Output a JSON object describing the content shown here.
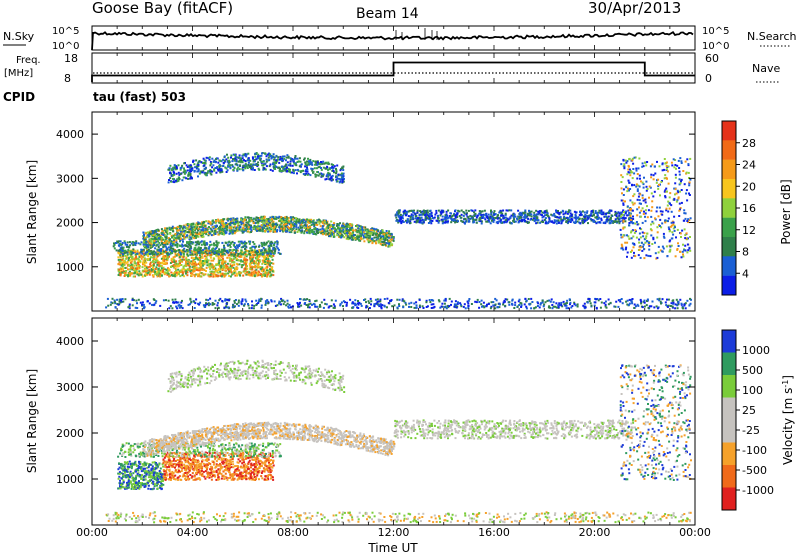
{
  "header": {
    "title": "Goose Bay (fitACF)",
    "beam": "Beam 14",
    "date": "30/Apr/2013"
  },
  "nsky_panel": {
    "label": "N.Sky",
    "right_label": "N.Search",
    "ticks_left": [
      "10^5",
      "10^0"
    ],
    "ticks_right": [
      "10^5",
      "10^0"
    ]
  },
  "freq_panel": {
    "label_line1": "Freq.",
    "label_line2": "[MHz]",
    "ticks_left": [
      "18",
      "8"
    ],
    "ticks_right": [
      "60",
      "0"
    ],
    "right_label": "Nave",
    "cpid_label": "CPID",
    "cpid_value": "tau (fast) 503"
  },
  "colors": {
    "power": [
      "#0b1ee6",
      "#1a5fd4",
      "#2f7f4a",
      "#3aa14a",
      "#8fd13c",
      "#f7c51e",
      "#f59a19",
      "#f16a17",
      "#e5321a"
    ],
    "velocity_pos": [
      "#1c3bd8",
      "#2f9b5f",
      "#7acc3a"
    ],
    "velocity_gray": "#c6c3bf",
    "velocity_neg": [
      "#f5a12a",
      "#f06a1a",
      "#e0201f"
    ]
  },
  "chart_data": [
    {
      "type": "heatmap",
      "name_key": "power",
      "ylabel": "Slant Range [km]",
      "yticks": [
        "1000",
        "2000",
        "3000",
        "4000"
      ],
      "ylim": [
        0,
        4500
      ],
      "colorbar_label": "Power [dB]",
      "colorbar_ticks": [
        "4",
        "8",
        "12",
        "16",
        "20",
        "24",
        "28"
      ],
      "clim": [
        0,
        32
      ]
    },
    {
      "type": "heatmap",
      "name_key": "velocity",
      "ylabel": "Slant Range [km]",
      "yticks": [
        "1000",
        "2000",
        "3000",
        "4000"
      ],
      "ylim": [
        0,
        4500
      ],
      "colorbar_label": "Velocity [m s",
      "colorbar_label_sup": "-1",
      "colorbar_label_end": "]",
      "colorbar_ticks": [
        "1000",
        "500",
        "100",
        "25",
        "-25",
        "-100",
        "-500",
        "-1000"
      ]
    }
  ],
  "xaxis": {
    "label": "Time UT",
    "ticks": [
      "00:00",
      "04:00",
      "08:00",
      "12:00",
      "16:00",
      "20:00",
      "00:00"
    ],
    "xlim": [
      0,
      24
    ]
  },
  "frequency_series": {
    "segments": [
      {
        "from": 0.0,
        "to": 12.0,
        "freq": 10.5
      },
      {
        "from": 12.0,
        "to": 22.0,
        "freq": 15.5
      },
      {
        "from": 22.0,
        "to": 24.0,
        "freq": 10.5
      }
    ]
  }
}
